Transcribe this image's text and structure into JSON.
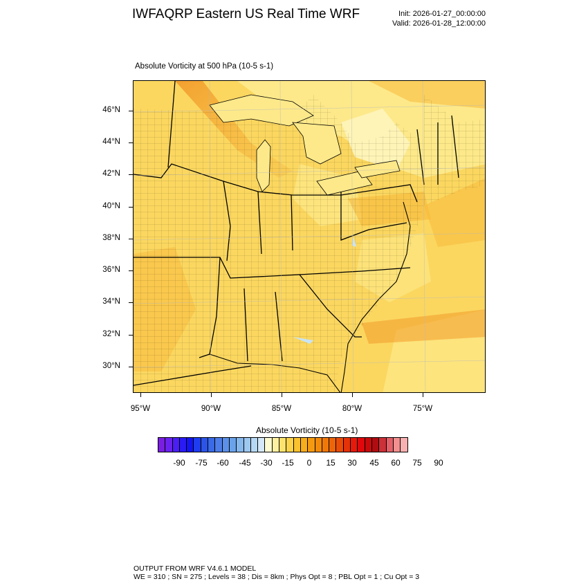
{
  "header": {
    "title": "IWFAQRP Eastern US Real Time WRF",
    "init": "Init: 2026-01-27_00:00:00",
    "valid": "Valid: 2026-01-28_12:00:00"
  },
  "map": {
    "field_title": "Absolute Vorticity at 500 hPa   (10-5 s-1)",
    "lat_labels": [
      "46°N",
      "44°N",
      "42°N",
      "40°N",
      "38°N",
      "36°N",
      "34°N",
      "32°N",
      "30°N"
    ],
    "lon_labels": [
      "95°W",
      "90°W",
      "85°W",
      "80°W",
      "75°W"
    ],
    "colors": {
      "base_fill": "#fbd760",
      "light_fill": "#fde98a",
      "pale_fill": "#fef4b8",
      "orange_fill": "#f7b93a",
      "deep_orange": "#f29a2a",
      "water_blue": "#c8e4f5",
      "boundary": "#000000"
    }
  },
  "colorbar": {
    "title": "Absolute Vorticity  (10-5 s-1)",
    "labels": [
      "-90",
      "-75",
      "-60",
      "-45",
      "-30",
      "-15",
      "0",
      "15",
      "30",
      "45",
      "60",
      "75",
      "90"
    ],
    "colors": [
      "#7a1fe0",
      "#6a22f0",
      "#4a1ff5",
      "#2a1af5",
      "#1414f0",
      "#1e3cf0",
      "#2c55e8",
      "#3a6ae6",
      "#4d7de8",
      "#5c90e8",
      "#6aa3ea",
      "#86b8ee",
      "#9ec8f0",
      "#b6d8f4",
      "#d4e8f8",
      "#fdfad0",
      "#fdf0a0",
      "#fde36d",
      "#fbd34a",
      "#f9c22e",
      "#f7ad1c",
      "#f59a10",
      "#f38a0a",
      "#f07808",
      "#ee6408",
      "#ea4c08",
      "#e63208",
      "#e61a0a",
      "#e0080a",
      "#c80a0a",
      "#b00c12",
      "#cc3038",
      "#e46068",
      "#f29090",
      "#f8b0b0"
    ]
  },
  "footer": {
    "line1": "OUTPUT FROM WRF V4.6.1 MODEL",
    "line2": "WE = 310 ; SN = 275 ; Levels = 38 ; Dis = 8km ; Phys Opt = 8 ; PBL Opt = 1 ; Cu Opt = 3"
  }
}
